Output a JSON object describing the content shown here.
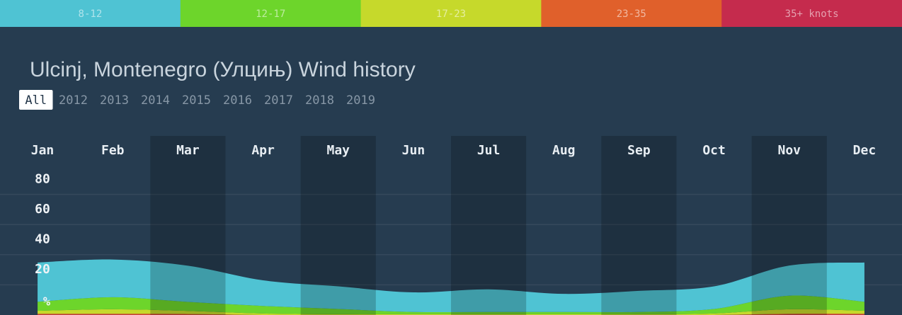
{
  "chart_data": {
    "type": "area",
    "stacked": true,
    "title": "Ulcinj, Montenegro (Улцињ) Wind history",
    "tabs": [
      "All",
      "2012",
      "2013",
      "2014",
      "2015",
      "2016",
      "2017",
      "2018",
      "2019"
    ],
    "active_tab": 0,
    "categories": [
      "Jan",
      "Feb",
      "Mar",
      "Apr",
      "May",
      "Jun",
      "Jul",
      "Aug",
      "Sep",
      "Oct",
      "Nov",
      "Dec"
    ],
    "series": [
      {
        "name": "8-12",
        "color": "#4fc3d3",
        "values": [
          26,
          25,
          24,
          17,
          15,
          13,
          15,
          12,
          14,
          15,
          20,
          26
        ]
      },
      {
        "name": "12-17",
        "color": "#6dd52b",
        "values": [
          6,
          8,
          6,
          5,
          3.5,
          1.5,
          1.5,
          1.5,
          1.5,
          3,
          9,
          6
        ]
      },
      {
        "name": "17-23",
        "color": "#c6d92b",
        "values": [
          2,
          3,
          2,
          1,
          0.5,
          0.5,
          0.5,
          0.5,
          0.5,
          1,
          3,
          2
        ]
      },
      {
        "name": "23-35",
        "color": "#e0602b",
        "values": [
          0.5,
          0.5,
          0.5,
          0,
          0,
          0,
          0,
          0,
          0,
          0,
          0.5,
          0.5
        ]
      },
      {
        "name": "35+ knots",
        "color": "#c52b4d",
        "values": [
          0.3,
          0.3,
          0.2,
          0,
          0,
          0,
          0,
          0,
          0,
          0,
          0.3,
          0.3
        ]
      }
    ],
    "ylim": [
      0,
      100
    ],
    "yticks": [
      20,
      40,
      60,
      80
    ],
    "y_label": "%",
    "grid": true
  }
}
